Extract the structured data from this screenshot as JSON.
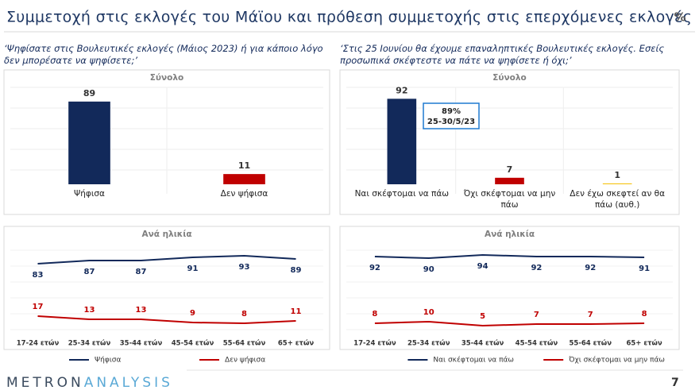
{
  "header": {
    "title": "Συμμετοχή στις εκλογές του Μάϊου και πρόθεση συμμετοχής στις επερχόμενες εκλογές",
    "unit": "%"
  },
  "chart_data": [
    {
      "type": "bar",
      "question": "‘Ψηφίσατε στις Βουλευτικές εκλογές (Μάιος 2023) ή για κάποιο λόγο δεν μπορέσατε να ψηφίσετε;’",
      "title": "Σύνολο",
      "categories": [
        "Ψήφισα",
        "Δεν ψήφισα"
      ],
      "values": [
        89,
        11
      ],
      "colors": [
        "#12295a",
        "#c00000"
      ]
    },
    {
      "type": "bar",
      "question": "‘Στις 25 Ιουνίου θα έχουμε επαναληπτικές Βουλευτικές εκλογές. Εσείς προσωπικά σκέφτεστε να πάτε να ψηφίσετε ή όχι;’",
      "title": "Σύνολο",
      "categories": [
        "Ναι σκέφτομαι να πάω",
        "Όχι σκέφτομαι να μην πάω",
        "Δεν έχω σκεφτεί αν θα πάω (αυθ.)"
      ],
      "values": [
        92,
        7,
        1
      ],
      "colors": [
        "#12295a",
        "#c00000",
        "#f5c518"
      ],
      "annotation": {
        "text": "89%",
        "date": "25-30/5/23"
      }
    },
    {
      "type": "line",
      "title": "Ανά ηλικία",
      "categories": [
        "17-24 ετών",
        "25-34 ετών",
        "35-44 ετών",
        "45-54 ετών",
        "55-64 ετών",
        "65+ ετών"
      ],
      "series": [
        {
          "name": "Ψήφισα",
          "color": "#12295a",
          "values": [
            83,
            87,
            87,
            91,
            93,
            89
          ]
        },
        {
          "name": "Δεν ψήφισα",
          "color": "#c00000",
          "values": [
            17,
            13,
            13,
            9,
            8,
            11
          ]
        }
      ]
    },
    {
      "type": "line",
      "title": "Ανά ηλικία",
      "categories": [
        "17-24 ετών",
        "25-34 ετών",
        "35-44 ετών",
        "45-54 ετών",
        "55-64 ετών",
        "65+ ετών"
      ],
      "series": [
        {
          "name": "Ναι σκέφτομαι να πάω",
          "color": "#12295a",
          "values": [
            92,
            90,
            94,
            92,
            92,
            91
          ]
        },
        {
          "name": "Όχι σκέφτομαι να μην πάω",
          "color": "#c00000",
          "values": [
            8,
            10,
            5,
            7,
            7,
            8
          ]
        }
      ]
    }
  ],
  "footer": {
    "logo_left": "METRON",
    "logo_right": "ANALYSIS",
    "page": 7
  }
}
